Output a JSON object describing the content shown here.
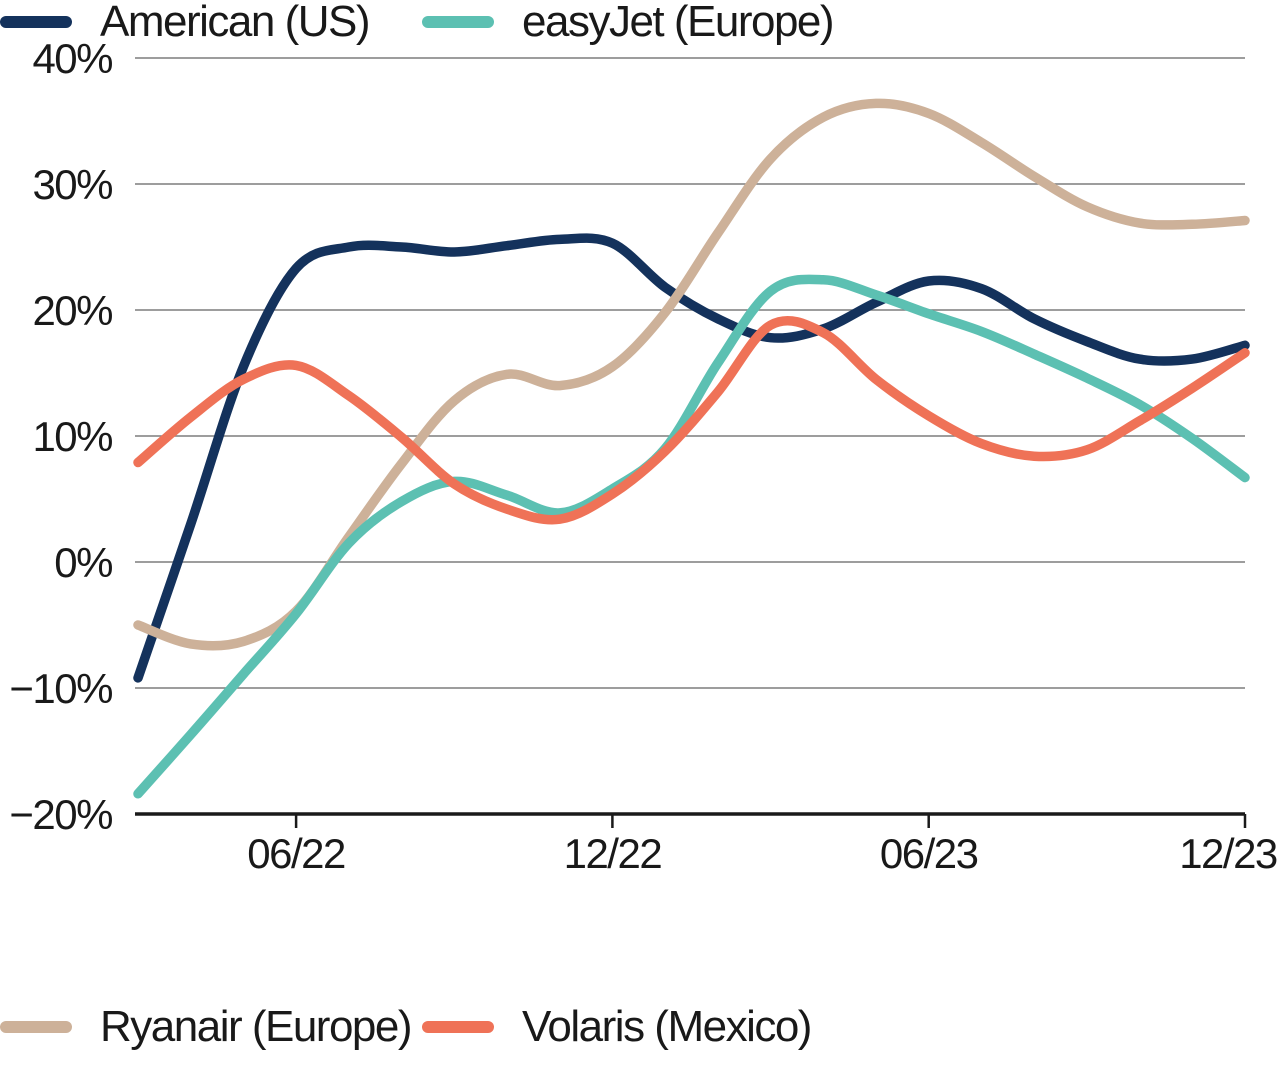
{
  "chart_data": {
    "type": "line",
    "title": "",
    "y_unit": "%",
    "ylim": [
      -20,
      40
    ],
    "x_range_months": 21,
    "grid": true,
    "legend_position": "bottom",
    "colors": {
      "grid": "#7d7d7d",
      "axis": "#1a1a1a",
      "text": "#191919",
      "background": "#ffffff"
    },
    "y_ticks": [
      {
        "value": 40,
        "label": "40%"
      },
      {
        "value": 30,
        "label": "30%"
      },
      {
        "value": 20,
        "label": "20%"
      },
      {
        "value": 10,
        "label": "10%"
      },
      {
        "value": 0,
        "label": "0%"
      },
      {
        "value": -10,
        "label": "−10%"
      },
      {
        "value": -20,
        "label": "−20%"
      }
    ],
    "x_ticks": [
      {
        "month": 3,
        "label": "06/22"
      },
      {
        "month": 9,
        "label": "12/22"
      },
      {
        "month": 15,
        "label": "06/23"
      },
      {
        "month": 21,
        "label": "12/23"
      }
    ],
    "series": [
      {
        "name": "American (US)",
        "color": "#14325c",
        "values": [
          -9.2,
          3.0,
          15.5,
          23.3,
          25.0,
          25.0,
          24.6,
          25.1,
          25.6,
          25.3,
          21.8,
          19.3,
          17.8,
          18.5,
          20.6,
          22.3,
          21.7,
          19.3,
          17.5,
          16.1,
          16.1,
          17.2
        ]
      },
      {
        "name": "Ryanair (Europe)",
        "color": "#cdb199",
        "values": [
          -5.0,
          -6.5,
          -6.3,
          -3.9,
          2.0,
          7.8,
          12.8,
          14.9,
          14.0,
          15.5,
          19.8,
          26.1,
          32.0,
          35.3,
          36.4,
          35.6,
          33.3,
          30.6,
          28.2,
          26.9,
          26.8,
          27.1
        ]
      },
      {
        "name": "easyJet (Europe)",
        "color": "#5cc0b2",
        "values": [
          -18.4,
          -13.7,
          -8.9,
          -4.1,
          1.5,
          4.8,
          6.4,
          5.3,
          3.9,
          5.8,
          9.0,
          15.8,
          21.5,
          22.4,
          21.2,
          19.7,
          18.3,
          16.5,
          14.6,
          12.5,
          9.8,
          6.7
        ]
      },
      {
        "name": "Volaris (Mexico)",
        "color": "#ef7257",
        "values": [
          7.9,
          11.5,
          14.5,
          15.6,
          13.2,
          9.9,
          6.2,
          4.2,
          3.4,
          5.4,
          8.8,
          13.5,
          18.8,
          18.2,
          14.5,
          11.6,
          9.4,
          8.4,
          8.9,
          11.2,
          13.8,
          16.6
        ]
      }
    ]
  },
  "legend": {
    "items": [
      {
        "series_index": 0
      },
      {
        "series_index": 1
      },
      {
        "series_index": 2
      },
      {
        "series_index": 3
      }
    ]
  }
}
